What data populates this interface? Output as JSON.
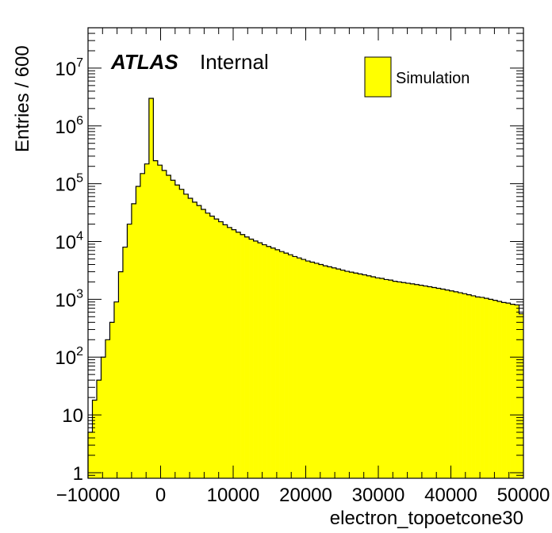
{
  "chart_data": {
    "type": "bar",
    "xlabel": "electron_topoetcone30",
    "ylabel": "Entries / 600",
    "atlas_label": "ATLAS",
    "atlas_status": "Internal",
    "legend": [
      {
        "name": "Simulation",
        "color": "#ffff00"
      }
    ],
    "fill_color": "#ffff00",
    "line_color": "#000000",
    "y_scale": "log",
    "xlim": [
      -10000,
      50000
    ],
    "ylim": [
      0.8,
      50000000
    ],
    "x_ticks": [
      {
        "value": -10000,
        "label": "−10000"
      },
      {
        "value": 0,
        "label": "0"
      },
      {
        "value": 10000,
        "label": "10000"
      },
      {
        "value": 20000,
        "label": "20000"
      },
      {
        "value": 30000,
        "label": "30000"
      },
      {
        "value": 40000,
        "label": "40000"
      },
      {
        "value": 50000,
        "label": "50000"
      }
    ],
    "y_ticks": [
      {
        "value": 1,
        "base": "1",
        "exp": ""
      },
      {
        "value": 10,
        "base": "10",
        "exp": ""
      },
      {
        "value": 100,
        "base": "10",
        "exp": "2"
      },
      {
        "value": 1000,
        "base": "10",
        "exp": "3"
      },
      {
        "value": 10000,
        "base": "10",
        "exp": "4"
      },
      {
        "value": 100000,
        "base": "10",
        "exp": "5"
      },
      {
        "value": 1000000,
        "base": "10",
        "exp": "6"
      },
      {
        "value": 10000000,
        "base": "10",
        "exp": "7"
      }
    ],
    "bin_width": 600,
    "x_start": -10000,
    "values": [
      5,
      18,
      40,
      100,
      200,
      400,
      900,
      3000,
      8000,
      20000,
      45000,
      90000,
      150000,
      220000,
      3000000,
      250000,
      210000,
      170000,
      140000,
      115000,
      95000,
      80000,
      66000,
      56000,
      48000,
      42000,
      36000,
      31000,
      27500,
      24500,
      22000,
      19500,
      17500,
      16000,
      14500,
      13200,
      12000,
      11000,
      10200,
      9500,
      8800,
      8200,
      7700,
      7200,
      6700,
      6300,
      5900,
      5500,
      5200,
      4900,
      4600,
      4400,
      4200,
      4000,
      3800,
      3650,
      3500,
      3350,
      3200,
      3050,
      2950,
      2850,
      2750,
      2650,
      2550,
      2450,
      2350,
      2300,
      2200,
      2150,
      2050,
      2000,
      1950,
      1900,
      1850,
      1800,
      1750,
      1700,
      1650,
      1600,
      1550,
      1500,
      1450,
      1400,
      1350,
      1300,
      1250,
      1200,
      1150,
      1100,
      1080,
      1040,
      1000,
      960,
      920,
      880,
      860,
      820,
      800,
      560
    ]
  }
}
